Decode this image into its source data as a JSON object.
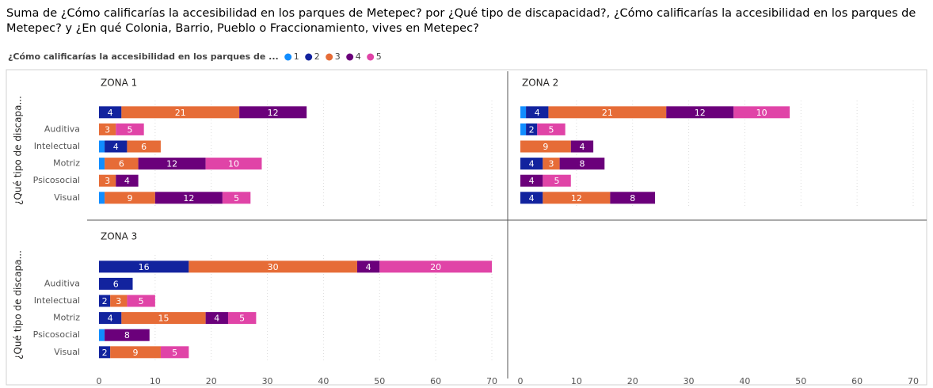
{
  "title": "Suma de ¿Cómo calificarías la accesibilidad en los parques de Metepec? por ¿Qué tipo de discapacidad?, ¿Cómo calificarías la accesibilidad en los parques de Metepec? y ¿En qué Colonia, Barrio, Pueblo o Fraccionamiento, vives en Metepec?",
  "legend_title": "¿Cómo calificarías la accesibilidad en los parques de ...",
  "chart_data": [
    {
      "type": "bar",
      "orientation": "horizontal",
      "stacked": true,
      "title": "ZONA 1",
      "ylabel": "¿Qué tipo de discapa...",
      "categories": [
        null,
        "Auditiva",
        "Intelectual",
        "Motriz",
        "Psicosocial",
        "Visual"
      ],
      "xlim": [
        0,
        70
      ],
      "xticks": [
        0,
        10,
        20,
        30,
        40,
        50,
        60,
        70
      ],
      "grid": true,
      "series": [
        {
          "name": "1",
          "color": "#118DFF",
          "values": [
            null,
            null,
            1,
            1,
            null,
            1
          ]
        },
        {
          "name": "2",
          "color": "#12239E",
          "values": [
            4,
            null,
            4,
            null,
            null,
            null
          ]
        },
        {
          "name": "3",
          "color": "#E66C37",
          "values": [
            21,
            3,
            6,
            6,
            3,
            9
          ]
        },
        {
          "name": "4",
          "color": "#6B007B",
          "values": [
            12,
            null,
            null,
            12,
            4,
            12
          ]
        },
        {
          "name": "5",
          "color": "#E044A7",
          "values": [
            null,
            5,
            null,
            10,
            null,
            5
          ]
        }
      ]
    },
    {
      "type": "bar",
      "orientation": "horizontal",
      "stacked": true,
      "title": "ZONA 2",
      "xlim": [
        0,
        70
      ],
      "xticks": [
        0,
        10,
        20,
        30,
        40,
        50,
        60,
        70
      ],
      "grid": true,
      "series": [
        {
          "name": "1",
          "color": "#118DFF",
          "values": [
            1,
            1,
            null,
            null,
            null,
            null
          ]
        },
        {
          "name": "2",
          "color": "#12239E",
          "values": [
            4,
            2,
            null,
            4,
            null,
            4
          ]
        },
        {
          "name": "3",
          "color": "#E66C37",
          "values": [
            21,
            null,
            9,
            3,
            null,
            12
          ]
        },
        {
          "name": "4",
          "color": "#6B007B",
          "values": [
            12,
            null,
            4,
            8,
            4,
            8
          ]
        },
        {
          "name": "5",
          "color": "#E044A7",
          "values": [
            10,
            5,
            null,
            null,
            5,
            null
          ]
        }
      ]
    },
    {
      "type": "bar",
      "orientation": "horizontal",
      "stacked": true,
      "title": "ZONA 3",
      "ylabel": "¿Qué tipo de discapa...",
      "categories": [
        null,
        "Auditiva",
        "Intelectual",
        "Motriz",
        "Psicosocial",
        "Visual"
      ],
      "xlim": [
        0,
        70
      ],
      "xticks": [
        0,
        10,
        20,
        30,
        40,
        50,
        60,
        70
      ],
      "grid": true,
      "series": [
        {
          "name": "1",
          "color": "#118DFF",
          "values": [
            null,
            null,
            null,
            null,
            1,
            null
          ]
        },
        {
          "name": "2",
          "color": "#12239E",
          "values": [
            16,
            6,
            2,
            4,
            null,
            2
          ]
        },
        {
          "name": "3",
          "color": "#E66C37",
          "values": [
            30,
            null,
            3,
            15,
            null,
            9
          ]
        },
        {
          "name": "4",
          "color": "#6B007B",
          "values": [
            4,
            null,
            null,
            4,
            8,
            null
          ]
        },
        {
          "name": "5",
          "color": "#E044A7",
          "values": [
            20,
            null,
            5,
            5,
            null,
            5
          ]
        }
      ]
    }
  ]
}
